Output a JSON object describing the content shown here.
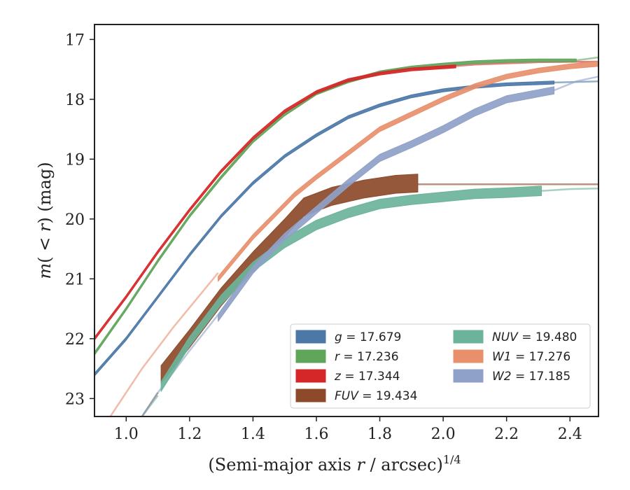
{
  "chart_data": {
    "type": "line",
    "xlabel": "(Semi-major axis r / arcsec)^1/4",
    "xlabel_parts": {
      "pre": "(Semi-major axis ",
      "var": "r",
      "post": " / arcsec)",
      "sup": "1/4"
    },
    "ylabel": "m( < r) (mag)",
    "ylabel_parts": {
      "m": "m",
      "mid": "( < ",
      "r": "r",
      "post": ") (mag)"
    },
    "xlim": [
      0.9,
      2.49
    ],
    "ylim": [
      23.3,
      16.75
    ],
    "y_inverted": true,
    "x_ticks": [
      1.0,
      1.2,
      1.4,
      1.6,
      1.8,
      2.0,
      2.2,
      2.4
    ],
    "x_tick_labels": [
      "1.0",
      "1.2",
      "1.4",
      "1.6",
      "1.8",
      "2.0",
      "2.2",
      "2.4"
    ],
    "y_ticks": [
      17,
      18,
      19,
      20,
      21,
      22,
      23
    ],
    "y_tick_labels": [
      "17",
      "18",
      "19",
      "20",
      "21",
      "22",
      "23"
    ],
    "grid": false,
    "legend_position": "lower-right",
    "legend_columns": 2,
    "series": [
      {
        "name": "g = 17.679",
        "band": "g",
        "value": "17.679",
        "color": "#4c78a8",
        "data_width": 0.05,
        "data": [
          [
            0.9,
            22.6
          ],
          [
            1.0,
            22.0
          ],
          [
            1.1,
            21.3
          ],
          [
            1.2,
            20.6
          ],
          [
            1.3,
            19.95
          ],
          [
            1.4,
            19.4
          ],
          [
            1.5,
            18.95
          ],
          [
            1.6,
            18.6
          ],
          [
            1.7,
            18.3
          ],
          [
            1.8,
            18.1
          ],
          [
            1.9,
            17.95
          ],
          [
            2.0,
            17.85
          ],
          [
            2.1,
            17.79
          ],
          [
            2.2,
            17.75
          ],
          [
            2.35,
            17.72
          ]
        ],
        "model": [
          [
            2.35,
            17.72
          ],
          [
            2.49,
            17.7
          ]
        ]
      },
      {
        "name": "r = 17.236",
        "band": "r",
        "value": "17.236",
        "color": "#5fa55a",
        "data_width": 0.05,
        "data": [
          [
            0.9,
            22.25
          ],
          [
            1.0,
            21.5
          ],
          [
            1.1,
            20.7
          ],
          [
            1.2,
            19.95
          ],
          [
            1.3,
            19.3
          ],
          [
            1.4,
            18.7
          ],
          [
            1.5,
            18.25
          ],
          [
            1.6,
            17.9
          ],
          [
            1.7,
            17.7
          ],
          [
            1.8,
            17.55
          ],
          [
            1.9,
            17.47
          ],
          [
            2.0,
            17.42
          ],
          [
            2.1,
            17.38
          ],
          [
            2.2,
            17.36
          ],
          [
            2.3,
            17.35
          ],
          [
            2.42,
            17.35
          ]
        ],
        "model": [
          [
            2.42,
            17.35
          ],
          [
            2.49,
            17.3
          ]
        ]
      },
      {
        "name": "z = 17.344",
        "band": "z",
        "value": "17.344",
        "color": "#d62728",
        "data_width": 0.05,
        "data": [
          [
            0.9,
            22.0
          ],
          [
            1.0,
            21.3
          ],
          [
            1.1,
            20.55
          ],
          [
            1.2,
            19.85
          ],
          [
            1.3,
            19.2
          ],
          [
            1.4,
            18.65
          ],
          [
            1.5,
            18.2
          ],
          [
            1.6,
            17.88
          ],
          [
            1.7,
            17.68
          ],
          [
            1.8,
            17.57
          ],
          [
            1.9,
            17.5
          ],
          [
            2.04,
            17.45
          ]
        ],
        "model": [
          [
            1.9,
            17.5
          ],
          [
            2.1,
            17.42
          ],
          [
            2.3,
            17.38
          ],
          [
            2.49,
            17.37
          ]
        ]
      },
      {
        "name": "FUV = 19.434",
        "band": "FUV",
        "value": "19.434",
        "color": "#8c4a2a",
        "data_width": 0.3,
        "data": [
          [
            1.11,
            22.6
          ],
          [
            1.2,
            22.0
          ],
          [
            1.3,
            21.3
          ],
          [
            1.4,
            20.7
          ],
          [
            1.5,
            20.15
          ],
          [
            1.56,
            19.8
          ],
          [
            1.65,
            19.62
          ],
          [
            1.75,
            19.5
          ],
          [
            1.85,
            19.42
          ],
          [
            1.92,
            19.4
          ]
        ],
        "model": [
          [
            1.0,
            23.5
          ],
          [
            1.05,
            23.3
          ],
          [
            1.1,
            22.9
          ]
        ],
        "model_tail": [
          [
            1.92,
            19.42
          ],
          [
            2.1,
            19.42
          ],
          [
            2.3,
            19.42
          ],
          [
            2.49,
            19.42
          ]
        ]
      },
      {
        "name": "NUV = 19.480",
        "band": "NUV",
        "value": "19.480",
        "color": "#6bb39a",
        "data_width": 0.16,
        "data": [
          [
            1.11,
            22.8
          ],
          [
            1.2,
            22.05
          ],
          [
            1.3,
            21.35
          ],
          [
            1.4,
            20.8
          ],
          [
            1.5,
            20.4
          ],
          [
            1.6,
            20.1
          ],
          [
            1.7,
            19.9
          ],
          [
            1.8,
            19.75
          ],
          [
            1.9,
            19.68
          ],
          [
            2.0,
            19.63
          ],
          [
            2.1,
            19.58
          ],
          [
            2.2,
            19.56
          ],
          [
            2.31,
            19.53
          ]
        ],
        "model": [
          [
            1.0,
            23.6
          ],
          [
            1.05,
            23.3
          ],
          [
            1.1,
            22.95
          ]
        ],
        "model_tail": [
          [
            2.31,
            19.53
          ],
          [
            2.4,
            19.5
          ],
          [
            2.49,
            19.49
          ]
        ]
      },
      {
        "name": "W1 = 17.276",
        "band": "W1",
        "value": "17.276",
        "color": "#e8906c",
        "data_width": 0.08,
        "data": [
          [
            1.29,
            21.0
          ],
          [
            1.4,
            20.3
          ],
          [
            1.53,
            19.6
          ],
          [
            1.6,
            19.3
          ],
          [
            1.7,
            18.9
          ],
          [
            1.8,
            18.5
          ],
          [
            1.9,
            18.25
          ],
          [
            2.0,
            18.0
          ],
          [
            2.1,
            17.78
          ],
          [
            2.2,
            17.62
          ],
          [
            2.3,
            17.52
          ],
          [
            2.4,
            17.45
          ],
          [
            2.49,
            17.41
          ]
        ],
        "model": [
          [
            0.95,
            23.3
          ],
          [
            1.05,
            22.5
          ],
          [
            1.15,
            21.8
          ],
          [
            1.29,
            20.9
          ]
        ]
      },
      {
        "name": "W2 = 17.185",
        "band": "W2",
        "value": "17.185",
        "color": "#8fa1c8",
        "data_width": 0.12,
        "data": [
          [
            1.29,
            21.65
          ],
          [
            1.4,
            20.85
          ],
          [
            1.5,
            20.3
          ],
          [
            1.6,
            19.85
          ],
          [
            1.7,
            19.4
          ],
          [
            1.8,
            18.98
          ],
          [
            1.9,
            18.75
          ],
          [
            2.0,
            18.5
          ],
          [
            2.1,
            18.22
          ],
          [
            2.2,
            18.0
          ],
          [
            2.35,
            17.85
          ]
        ],
        "model": [
          [
            1.0,
            23.5
          ],
          [
            1.05,
            23.3
          ],
          [
            1.1,
            22.9
          ],
          [
            1.2,
            22.2
          ],
          [
            1.29,
            21.6
          ]
        ],
        "model_tail": [
          [
            2.35,
            17.85
          ],
          [
            2.42,
            17.7
          ],
          [
            2.49,
            17.62
          ]
        ]
      }
    ]
  }
}
